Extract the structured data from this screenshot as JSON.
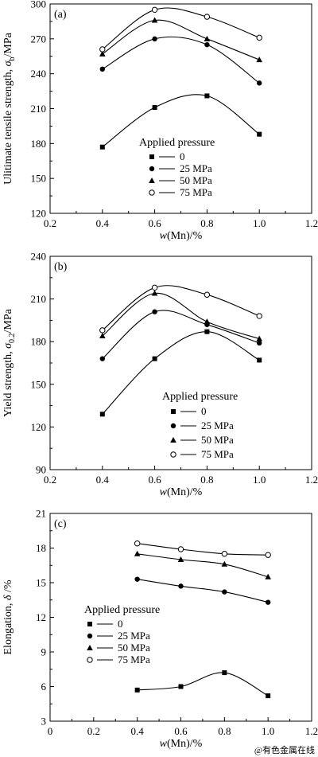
{
  "chart_data": [
    {
      "type": "line",
      "panel_label": "(a)",
      "xlabel_prefix": "w",
      "xlabel_suffix": "(Mn)/%",
      "ylabel_prefix": "Ulitimate tensile strength, ",
      "ylabel_symbol": "σ",
      "ylabel_sub": "b",
      "ylabel_suffix": "/MPa",
      "xlim": [
        0.2,
        1.2
      ],
      "ylim": [
        120,
        300
      ],
      "xticks": [
        "0.2",
        "0.4",
        "0.6",
        "0.8",
        "1.0",
        "1.2"
      ],
      "yticks": [
        "120",
        "150",
        "180",
        "210",
        "240",
        "270",
        "300"
      ],
      "legend_title": "Applied pressure",
      "series": [
        {
          "name": "0",
          "marker": "square",
          "x": [
            0.4,
            0.6,
            0.8,
            1.0
          ],
          "y": [
            177,
            211,
            221,
            188
          ]
        },
        {
          "name": "25 MPa",
          "marker": "circle",
          "x": [
            0.4,
            0.6,
            0.8,
            1.0
          ],
          "y": [
            244,
            270,
            265,
            232
          ]
        },
        {
          "name": "50 MPa",
          "marker": "triangle",
          "x": [
            0.4,
            0.6,
            0.8,
            1.0
          ],
          "y": [
            257,
            286,
            270,
            252
          ]
        },
        {
          "name": "75 MPa",
          "marker": "open-circle",
          "x": [
            0.4,
            0.6,
            0.8,
            1.0
          ],
          "y": [
            261,
            295,
            289,
            271
          ]
        }
      ]
    },
    {
      "type": "line",
      "panel_label": "(b)",
      "xlabel_prefix": "w",
      "xlabel_suffix": "(Mn)/%",
      "ylabel_prefix": "Yield strength, ",
      "ylabel_symbol": "σ",
      "ylabel_sub": "0.2",
      "ylabel_suffix": "/MPa",
      "xlim": [
        0.2,
        1.2
      ],
      "ylim": [
        90,
        240
      ],
      "xticks": [
        "0.2",
        "0.4",
        "0.6",
        "0.8",
        "1.0",
        "1.2"
      ],
      "yticks": [
        "90",
        "120",
        "150",
        "180",
        "210",
        "240"
      ],
      "legend_title": "Applied pressure",
      "series": [
        {
          "name": "0",
          "marker": "square",
          "x": [
            0.4,
            0.6,
            0.8,
            1.0
          ],
          "y": [
            129,
            168,
            187,
            167
          ]
        },
        {
          "name": "25 MPa",
          "marker": "circle",
          "x": [
            0.4,
            0.6,
            0.8,
            1.0
          ],
          "y": [
            168,
            201,
            192,
            179
          ]
        },
        {
          "name": "50 MPa",
          "marker": "triangle",
          "x": [
            0.4,
            0.6,
            0.8,
            1.0
          ],
          "y": [
            184,
            214,
            194,
            182
          ]
        },
        {
          "name": "75 MPa",
          "marker": "open-circle",
          "x": [
            0.4,
            0.6,
            0.8,
            1.0
          ],
          "y": [
            188,
            218,
            213,
            198
          ]
        }
      ]
    },
    {
      "type": "line",
      "panel_label": "(c)",
      "xlabel_prefix": "w",
      "xlabel_suffix": "(Mn)/%",
      "ylabel_prefix": "Elongation, ",
      "ylabel_symbol": "δ",
      "ylabel_sub": "",
      "ylabel_suffix": " /%",
      "xlim": [
        0,
        1.2
      ],
      "ylim": [
        3,
        21
      ],
      "xticks": [
        "0",
        "0.2",
        "0.4",
        "0.6",
        "0.8",
        "1.0",
        "1.2"
      ],
      "yticks": [
        "3",
        "6",
        "9",
        "12",
        "15",
        "18",
        "21"
      ],
      "legend_title": "Applied pressure",
      "series": [
        {
          "name": "0",
          "marker": "square",
          "x": [
            0.4,
            0.6,
            0.8,
            1.0
          ],
          "y": [
            5.7,
            6.0,
            7.2,
            5.2
          ]
        },
        {
          "name": "25 MPa",
          "marker": "circle",
          "x": [
            0.4,
            0.6,
            0.8,
            1.0
          ],
          "y": [
            15.3,
            14.7,
            14.2,
            13.3
          ]
        },
        {
          "name": "50 MPa",
          "marker": "triangle",
          "x": [
            0.4,
            0.6,
            0.8,
            1.0
          ],
          "y": [
            17.5,
            17.0,
            16.6,
            15.5
          ]
        },
        {
          "name": "75 MPa",
          "marker": "open-circle",
          "x": [
            0.4,
            0.6,
            0.8,
            1.0
          ],
          "y": [
            18.4,
            17.9,
            17.5,
            17.4
          ]
        }
      ]
    }
  ],
  "watermark": "@有色金属在线"
}
